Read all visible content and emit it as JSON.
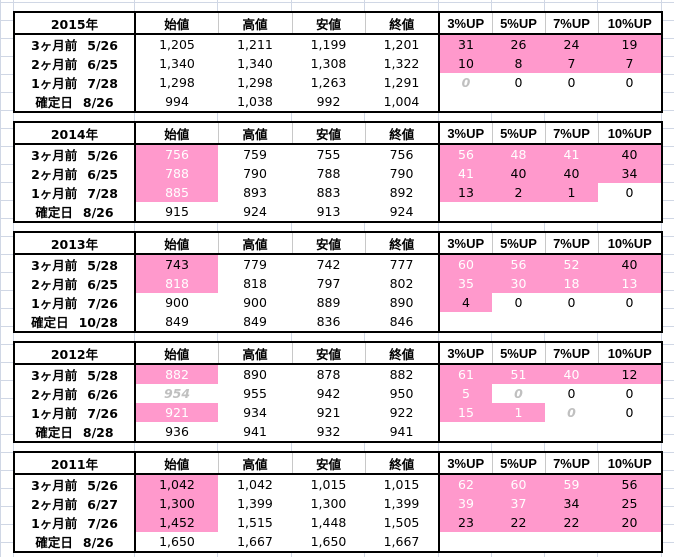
{
  "columns": [
    "始値",
    "高値",
    "安値",
    "終値",
    "3%UP",
    "5%UP",
    "7%UP",
    "10%UP"
  ],
  "colors": {
    "highlight": "#ff99cc",
    "muted_text": "#c0c0c0",
    "white_text": "#ffffff"
  },
  "style_legend": {
    "p": "pink fill",
    "pw": "pink fill, white text",
    "g": "grey italic text",
    "": "plain"
  },
  "blocks": [
    {
      "year": "2015年",
      "rows": [
        {
          "label": "3ヶ月前",
          "date": "5/26",
          "cells": [
            [
              "1,205",
              ""
            ],
            [
              "1,211",
              ""
            ],
            [
              "1,199",
              ""
            ],
            [
              "1,201",
              ""
            ],
            [
              "31",
              "p"
            ],
            [
              "26",
              "p"
            ],
            [
              "24",
              "p"
            ],
            [
              "19",
              "p"
            ]
          ]
        },
        {
          "label": "2ヶ月前",
          "date": "6/25",
          "cells": [
            [
              "1,340",
              ""
            ],
            [
              "1,340",
              ""
            ],
            [
              "1,308",
              ""
            ],
            [
              "1,322",
              ""
            ],
            [
              "10",
              "p"
            ],
            [
              "8",
              "p"
            ],
            [
              "7",
              "p"
            ],
            [
              "7",
              "p"
            ]
          ]
        },
        {
          "label": "1ヶ月前",
          "date": "7/28",
          "cells": [
            [
              "1,298",
              ""
            ],
            [
              "1,298",
              ""
            ],
            [
              "1,263",
              ""
            ],
            [
              "1,291",
              ""
            ],
            [
              "0",
              "g"
            ],
            [
              "0",
              ""
            ],
            [
              "0",
              ""
            ],
            [
              "0",
              ""
            ]
          ]
        },
        {
          "label": "確定日",
          "date": "8/26",
          "cells": [
            [
              "994",
              ""
            ],
            [
              "1,038",
              ""
            ],
            [
              "992",
              ""
            ],
            [
              "1,004",
              ""
            ],
            [
              "",
              ""
            ],
            [
              "",
              ""
            ],
            [
              "",
              ""
            ],
            [
              "",
              ""
            ]
          ]
        }
      ]
    },
    {
      "year": "2014年",
      "rows": [
        {
          "label": "3ヶ月前",
          "date": "5/26",
          "cells": [
            [
              "756",
              "pw"
            ],
            [
              "759",
              ""
            ],
            [
              "755",
              ""
            ],
            [
              "756",
              ""
            ],
            [
              "56",
              "pw"
            ],
            [
              "48",
              "pw"
            ],
            [
              "41",
              "pw"
            ],
            [
              "40",
              "p"
            ]
          ]
        },
        {
          "label": "2ヶ月前",
          "date": "6/25",
          "cells": [
            [
              "788",
              "pw"
            ],
            [
              "790",
              ""
            ],
            [
              "788",
              ""
            ],
            [
              "790",
              ""
            ],
            [
              "41",
              "pw"
            ],
            [
              "40",
              "p"
            ],
            [
              "40",
              "p"
            ],
            [
              "34",
              "p"
            ]
          ]
        },
        {
          "label": "1ヶ月前",
          "date": "7/28",
          "cells": [
            [
              "885",
              "pw"
            ],
            [
              "893",
              ""
            ],
            [
              "883",
              ""
            ],
            [
              "892",
              ""
            ],
            [
              "13",
              "p"
            ],
            [
              "2",
              "p"
            ],
            [
              "1",
              "p"
            ],
            [
              "0",
              ""
            ]
          ]
        },
        {
          "label": "確定日",
          "date": "8/26",
          "cells": [
            [
              "915",
              ""
            ],
            [
              "924",
              ""
            ],
            [
              "913",
              ""
            ],
            [
              "924",
              ""
            ],
            [
              "",
              ""
            ],
            [
              "",
              ""
            ],
            [
              "",
              ""
            ],
            [
              "",
              ""
            ]
          ]
        }
      ]
    },
    {
      "year": "2013年",
      "rows": [
        {
          "label": "3ヶ月前",
          "date": "5/28",
          "cells": [
            [
              "743",
              "p"
            ],
            [
              "779",
              ""
            ],
            [
              "742",
              ""
            ],
            [
              "777",
              ""
            ],
            [
              "60",
              "pw"
            ],
            [
              "56",
              "pw"
            ],
            [
              "52",
              "pw"
            ],
            [
              "40",
              "p"
            ]
          ]
        },
        {
          "label": "2ヶ月前",
          "date": "6/25",
          "cells": [
            [
              "818",
              "pw"
            ],
            [
              "818",
              ""
            ],
            [
              "797",
              ""
            ],
            [
              "802",
              ""
            ],
            [
              "35",
              "pw"
            ],
            [
              "30",
              "pw"
            ],
            [
              "18",
              "pw"
            ],
            [
              "13",
              "pw"
            ]
          ]
        },
        {
          "label": "1ヶ月前",
          "date": "7/26",
          "cells": [
            [
              "900",
              ""
            ],
            [
              "900",
              ""
            ],
            [
              "889",
              ""
            ],
            [
              "890",
              ""
            ],
            [
              "4",
              "p"
            ],
            [
              "0",
              ""
            ],
            [
              "0",
              ""
            ],
            [
              "0",
              ""
            ]
          ]
        },
        {
          "label": "確定日",
          "date": "10/28",
          "cells": [
            [
              "849",
              ""
            ],
            [
              "849",
              ""
            ],
            [
              "836",
              ""
            ],
            [
              "846",
              ""
            ],
            [
              "",
              ""
            ],
            [
              "",
              ""
            ],
            [
              "",
              ""
            ],
            [
              "",
              ""
            ]
          ]
        }
      ]
    },
    {
      "year": "2012年",
      "rows": [
        {
          "label": "3ヶ月前",
          "date": "5/28",
          "cells": [
            [
              "882",
              "pw"
            ],
            [
              "890",
              ""
            ],
            [
              "878",
              ""
            ],
            [
              "882",
              ""
            ],
            [
              "61",
              "pw"
            ],
            [
              "51",
              "pw"
            ],
            [
              "40",
              "pw"
            ],
            [
              "12",
              "p"
            ]
          ]
        },
        {
          "label": "2ヶ月前",
          "date": "6/26",
          "cells": [
            [
              "954",
              "g"
            ],
            [
              "955",
              ""
            ],
            [
              "942",
              ""
            ],
            [
              "950",
              ""
            ],
            [
              "5",
              "pw"
            ],
            [
              "0",
              "g"
            ],
            [
              "0",
              ""
            ],
            [
              "0",
              ""
            ]
          ]
        },
        {
          "label": "1ヶ月前",
          "date": "7/26",
          "cells": [
            [
              "921",
              "pw"
            ],
            [
              "934",
              ""
            ],
            [
              "921",
              ""
            ],
            [
              "922",
              ""
            ],
            [
              "15",
              "pw"
            ],
            [
              "1",
              "pw"
            ],
            [
              "0",
              "g"
            ],
            [
              "0",
              ""
            ]
          ]
        },
        {
          "label": "確定日",
          "date": "8/28",
          "cells": [
            [
              "936",
              ""
            ],
            [
              "941",
              ""
            ],
            [
              "932",
              ""
            ],
            [
              "941",
              ""
            ],
            [
              "",
              ""
            ],
            [
              "",
              ""
            ],
            [
              "",
              ""
            ],
            [
              "",
              ""
            ]
          ]
        }
      ]
    },
    {
      "year": "2011年",
      "rows": [
        {
          "label": "3ヶ月前",
          "date": "5/26",
          "cells": [
            [
              "1,042",
              "p"
            ],
            [
              "1,042",
              ""
            ],
            [
              "1,015",
              ""
            ],
            [
              "1,015",
              ""
            ],
            [
              "62",
              "pw"
            ],
            [
              "60",
              "pw"
            ],
            [
              "59",
              "pw"
            ],
            [
              "56",
              "p"
            ]
          ]
        },
        {
          "label": "2ヶ月前",
          "date": "6/27",
          "cells": [
            [
              "1,300",
              "p"
            ],
            [
              "1,399",
              ""
            ],
            [
              "1,300",
              ""
            ],
            [
              "1,399",
              ""
            ],
            [
              "39",
              "pw"
            ],
            [
              "37",
              "pw"
            ],
            [
              "34",
              "p"
            ],
            [
              "25",
              "p"
            ]
          ]
        },
        {
          "label": "1ヶ月前",
          "date": "7/26",
          "cells": [
            [
              "1,452",
              "p"
            ],
            [
              "1,515",
              ""
            ],
            [
              "1,448",
              ""
            ],
            [
              "1,505",
              ""
            ],
            [
              "23",
              "p"
            ],
            [
              "22",
              "p"
            ],
            [
              "22",
              "p"
            ],
            [
              "20",
              "p"
            ]
          ]
        },
        {
          "label": "確定日",
          "date": "8/26",
          "cells": [
            [
              "1,650",
              ""
            ],
            [
              "1,667",
              ""
            ],
            [
              "1,650",
              ""
            ],
            [
              "1,667",
              ""
            ],
            [
              "",
              ""
            ],
            [
              "",
              ""
            ],
            [
              "",
              ""
            ],
            [
              "",
              ""
            ]
          ]
        }
      ]
    }
  ]
}
